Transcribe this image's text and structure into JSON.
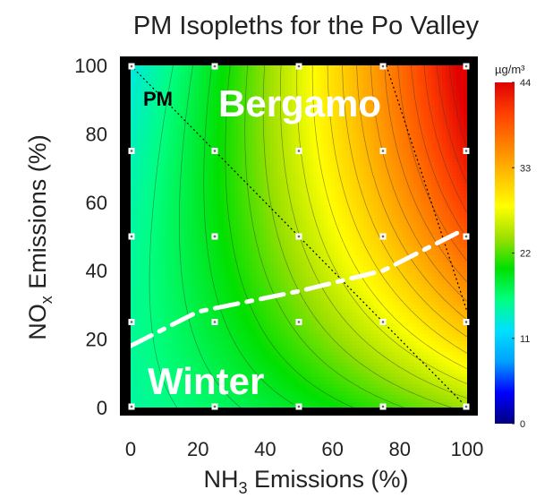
{
  "chart_data": {
    "type": "heatmap",
    "title": "PM Isopleths for the Po Valley",
    "xlabel": {
      "main": "NH",
      "sub": "3",
      "rest": " Emissions (%)"
    },
    "ylabel": {
      "main": "NO",
      "sub": "x",
      "rest": " Emissions (%)"
    },
    "x_ticks": [
      0,
      20,
      40,
      60,
      80,
      100
    ],
    "y_ticks": [
      0,
      20,
      40,
      60,
      80,
      100
    ],
    "xlim": [
      0,
      100
    ],
    "ylim": [
      0,
      100
    ],
    "colorbar": {
      "unit": "µg/m³",
      "min": 0,
      "max": 44,
      "ticks": [
        0,
        11,
        22,
        33,
        44
      ],
      "stops": [
        "#000080",
        "#0000ff",
        "#00a0ff",
        "#00e0ff",
        "#00ff80",
        "#00e000",
        "#9ee000",
        "#ffff00",
        "#ffc000",
        "#ff8000",
        "#ff4000",
        "#e00000"
      ]
    },
    "annotations": [
      "PM",
      "Bergamo",
      "Winter"
    ],
    "field_model": {
      "description": "PM concentration (µg/m³) as function of NH3 % (x) and NOx % (y)",
      "samples": [
        {
          "x": 0,
          "y": 0,
          "z": 15
        },
        {
          "x": 0,
          "y": 100,
          "z": 17
        },
        {
          "x": 50,
          "y": 0,
          "z": 22
        },
        {
          "x": 50,
          "y": 50,
          "z": 29
        },
        {
          "x": 50,
          "y": 100,
          "z": 30
        },
        {
          "x": 100,
          "y": 0,
          "z": 26
        },
        {
          "x": 100,
          "y": 50,
          "z": 42
        },
        {
          "x": 100,
          "y": 100,
          "z": 38
        }
      ]
    },
    "sample_points": {
      "x": [
        0,
        25,
        50,
        75,
        100
      ],
      "y": [
        0,
        25,
        50,
        75,
        100
      ]
    },
    "overlay_lines": [
      {
        "name": "dotted-diagonal",
        "style": "dotted",
        "points": [
          [
            0,
            100
          ],
          [
            100,
            0
          ]
        ]
      },
      {
        "name": "dotted-right",
        "style": "dotted",
        "points": [
          [
            76,
            100
          ],
          [
            100,
            28
          ]
        ]
      },
      {
        "name": "dash-dot-winter",
        "style": "dashdot",
        "points": [
          [
            0,
            18
          ],
          [
            20,
            28
          ],
          [
            50,
            34
          ],
          [
            75,
            40
          ],
          [
            97,
            51
          ]
        ]
      }
    ]
  }
}
